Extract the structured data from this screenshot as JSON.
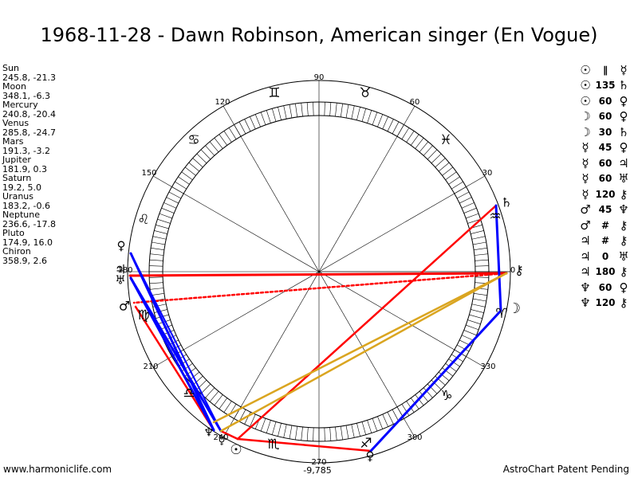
{
  "title": "1968-11-28 - Dawn Robinson, American singer (En Vogue)",
  "planets": [
    {
      "name": "Sun",
      "value": "245.8, -21.3"
    },
    {
      "name": "Moon",
      "value": "348.1, -6.3"
    },
    {
      "name": "Mercury",
      "value": "240.8, -20.4"
    },
    {
      "name": "Venus",
      "value": "285.8, -24.7"
    },
    {
      "name": "Mars",
      "value": "191.3, -3.2"
    },
    {
      "name": "Jupiter",
      "value": "181.9, 0.3"
    },
    {
      "name": "Saturn",
      "value": "19.2, 5.0"
    },
    {
      "name": "Uranus",
      "value": "183.2, -0.6"
    },
    {
      "name": "Neptune",
      "value": "236.6, -17.8"
    },
    {
      "name": "Pluto",
      "value": "174.9, 16.0"
    },
    {
      "name": "Chiron",
      "value": "358.9, 2.6"
    }
  ],
  "aspects": [
    {
      "p1": "☉",
      "aspect": "∥",
      "p2": "☿"
    },
    {
      "p1": "☉",
      "aspect": "135",
      "p2": "♄"
    },
    {
      "p1": "☉",
      "aspect": "60",
      "p2": "♀"
    },
    {
      "p1": "☽",
      "aspect": "60",
      "p2": "♀"
    },
    {
      "p1": "☽",
      "aspect": "30",
      "p2": "♄"
    },
    {
      "p1": "☿",
      "aspect": "45",
      "p2": "♀"
    },
    {
      "p1": "☿",
      "aspect": "60",
      "p2": "♃"
    },
    {
      "p1": "☿",
      "aspect": "60",
      "p2": "♅"
    },
    {
      "p1": "☿",
      "aspect": "120",
      "p2": "⚷"
    },
    {
      "p1": "♂",
      "aspect": "45",
      "p2": "♆"
    },
    {
      "p1": "♂",
      "aspect": "#",
      "p2": "⚷"
    },
    {
      "p1": "♃",
      "aspect": "#",
      "p2": "⚷"
    },
    {
      "p1": "♃",
      "aspect": "0",
      "p2": "♅"
    },
    {
      "p1": "♃",
      "aspect": "180",
      "p2": "⚷"
    },
    {
      "p1": "♆",
      "aspect": "60",
      "p2": "♀"
    },
    {
      "p1": "♆",
      "aspect": "120",
      "p2": "⚷"
    }
  ],
  "degree_labels": [
    "90",
    "120",
    "60",
    "150",
    "30",
    "180",
    "210",
    "330",
    "240",
    "270",
    "300",
    "0"
  ],
  "bottom_value": "-9,785",
  "zodiac_signs": [
    "♈",
    "♉",
    "♊",
    "♋",
    "♌",
    "♍",
    "♎",
    "♏",
    "♐",
    "♑",
    "♒",
    "♓"
  ],
  "planet_glyphs": {
    "sun": "☉",
    "moon": "☽",
    "mercury": "☿",
    "venus": "♀",
    "mars": "♂",
    "jupiter": "♃",
    "saturn": "♄",
    "uranus": "♅",
    "neptune": "♆",
    "pluto": "♇",
    "chiron": "⚷"
  },
  "colors": {
    "hard_aspect": "#ff0000",
    "soft_aspect": "#0000ff",
    "quincunx_aspect": "#daa520",
    "minor_aspect": "#ff0000"
  },
  "footer": {
    "left": "www.harmoniclife.com",
    "right": "AstroChart Patent Pending"
  }
}
